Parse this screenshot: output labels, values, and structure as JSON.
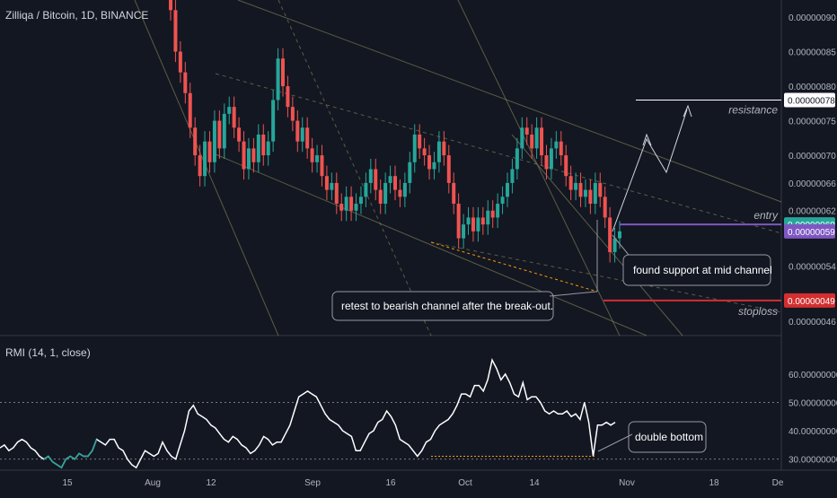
{
  "chart_title": "Zilliqa / Bitcoin, 1D, BINANCE",
  "colors": {
    "background": "#131722",
    "up_candle": "#26a69a",
    "down_candle": "#ef5350",
    "channel_line": "#8a8a5a",
    "grid": "#2a2e39",
    "entry_line": "#7e57c2",
    "stoploss_line": "#d32f2f",
    "rmi_line": "#ffffff",
    "rmi_low_line": "#26a69a"
  },
  "chart_data": [
    {
      "type": "candlestick",
      "price_ticks": [
        "0.00000090",
        "0.00000085",
        "0.00000080",
        "0.00000075",
        "0.00000070",
        "0.00000066",
        "0.00000062",
        "0.00000054",
        "0.00000046"
      ],
      "price_tags": [
        {
          "name": "resistance",
          "value": "0.00000078",
          "color": "#ffffff",
          "text_color": "#131722"
        },
        {
          "name": "entry",
          "value": "0.00000060",
          "color": "#26a69a",
          "text_color": "#ffffff"
        },
        {
          "name": "current",
          "value": "0.00000059",
          "color": "#7e57c2",
          "text_color": "#ffffff"
        },
        {
          "name": "stoploss",
          "value": "0.00000049",
          "color": "#d32f2f",
          "text_color": "#ffffff"
        }
      ],
      "line_labels": {
        "resistance": "resistance",
        "entry": "entry",
        "stoploss": "stoploss"
      },
      "annotations": [
        {
          "id": "support",
          "text": "found support at mid channel"
        },
        {
          "id": "retest",
          "text": "retest to bearish channel after the break-out."
        }
      ],
      "closes": [
        91,
        85,
        82,
        79,
        74,
        70,
        67,
        72,
        69,
        75,
        71,
        76,
        77,
        74,
        72,
        68,
        71,
        69,
        73,
        70,
        72,
        78,
        84,
        80,
        77,
        75,
        72,
        74,
        71,
        69,
        70,
        67,
        65,
        66,
        63,
        62,
        64,
        62,
        63,
        64,
        66,
        68,
        65,
        63,
        66,
        67,
        65,
        64,
        66,
        69,
        73,
        71,
        70,
        68,
        69,
        72,
        70,
        66,
        63,
        58,
        60,
        61,
        59,
        61,
        60,
        62,
        61,
        63,
        64,
        66,
        68,
        71,
        74,
        73,
        71,
        74,
        70,
        68,
        71,
        72,
        70,
        67,
        65,
        66,
        64,
        65,
        63,
        66,
        64,
        61,
        56,
        58,
        59
      ],
      "opens": [
        93,
        91,
        85,
        82,
        79,
        74,
        70,
        67,
        72,
        69,
        75,
        71,
        76,
        77,
        74,
        72,
        68,
        71,
        69,
        73,
        70,
        72,
        78,
        84,
        80,
        77,
        75,
        72,
        74,
        71,
        69,
        70,
        67,
        65,
        66,
        63,
        62,
        64,
        62,
        63,
        64,
        66,
        68,
        65,
        63,
        66,
        67,
        65,
        64,
        66,
        69,
        73,
        71,
        70,
        68,
        69,
        72,
        70,
        66,
        63,
        58,
        60,
        61,
        59,
        61,
        60,
        62,
        61,
        63,
        64,
        66,
        68,
        71,
        74,
        73,
        71,
        74,
        70,
        68,
        71,
        72,
        70,
        67,
        65,
        66,
        64,
        65,
        63,
        66,
        64,
        61,
        56,
        58
      ]
    },
    {
      "type": "line",
      "title": "RMI (14, 1, close)",
      "y_ticks": [
        "60.00000000",
        "50.00000000",
        "40.00000000",
        "30.00000000"
      ],
      "ylim": [
        28,
        66
      ],
      "level_lines": [
        50,
        30
      ],
      "values": [
        34,
        35,
        33,
        34,
        36,
        37,
        36,
        34,
        33,
        31,
        30,
        31,
        29,
        28,
        27,
        30,
        31,
        30,
        32,
        31,
        31,
        33,
        37,
        36,
        35,
        37,
        37,
        34,
        33,
        30,
        28,
        27,
        30,
        33,
        32,
        31,
        32,
        36,
        33,
        31,
        30,
        35,
        40,
        47,
        49,
        46,
        45,
        44,
        42,
        41,
        39,
        37,
        36,
        38,
        37,
        35,
        34,
        32,
        33,
        35,
        38,
        37,
        35,
        36,
        36,
        39,
        42,
        47,
        52,
        53,
        54,
        53,
        52,
        49,
        46,
        44,
        43,
        42,
        40,
        39,
        38,
        33,
        33,
        36,
        39,
        40,
        43,
        44,
        47,
        45,
        42,
        37,
        36,
        35,
        33,
        31,
        33,
        36,
        37,
        40,
        42,
        43,
        44,
        46,
        49,
        53,
        53,
        52,
        56,
        56,
        54,
        58,
        65,
        62,
        58,
        60,
        57,
        53,
        52,
        57,
        51,
        52,
        52,
        50,
        47,
        46,
        47,
        46,
        46,
        47,
        45,
        46,
        44,
        50,
        43,
        31,
        42,
        42,
        43,
        42,
        43
      ],
      "annotation": "double bottom"
    }
  ],
  "x_ticks": [
    "15",
    "Aug",
    "12",
    "Sep",
    "16",
    "Oct",
    "14",
    "Nov",
    "18",
    "De"
  ]
}
